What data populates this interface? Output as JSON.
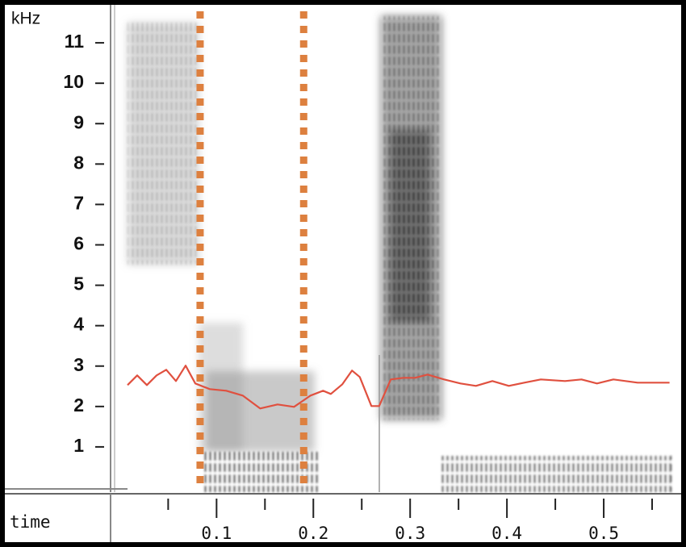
{
  "chart_data": {
    "type": "spectrogram",
    "y_label": "kHz",
    "x_label": "time",
    "xlim": [
      0.008,
      0.57
    ],
    "ylim": [
      0,
      11.9
    ],
    "xticks": [
      0.1,
      0.2,
      0.3,
      0.4,
      0.5
    ],
    "xminor_ticks": [
      0.05,
      0.15,
      0.25,
      0.35,
      0.45,
      0.55
    ],
    "yticks": [
      1,
      2,
      3,
      4,
      5,
      6,
      7,
      8,
      9,
      10,
      11
    ],
    "series": [
      {
        "color": "#e0503f",
        "x": [
          0.008,
          0.018,
          0.028,
          0.038,
          0.048,
          0.058,
          0.068,
          0.078,
          0.093,
          0.11,
          0.127,
          0.145,
          0.163,
          0.18,
          0.197,
          0.21,
          0.218,
          0.23,
          0.24,
          0.248,
          0.26,
          0.268,
          0.28,
          0.293,
          0.305,
          0.318,
          0.335,
          0.352,
          0.368,
          0.385,
          0.402,
          0.418,
          0.435,
          0.46,
          0.477,
          0.493,
          0.51,
          0.535,
          0.568
        ],
        "values": [
          2.53,
          2.77,
          2.53,
          2.77,
          2.91,
          2.63,
          3.01,
          2.57,
          2.43,
          2.39,
          2.27,
          1.95,
          2.05,
          1.99,
          2.27,
          2.39,
          2.31,
          2.55,
          2.89,
          2.73,
          2.01,
          2.01,
          2.67,
          2.71,
          2.71,
          2.79,
          2.67,
          2.57,
          2.51,
          2.63,
          2.51,
          2.59,
          2.67,
          2.63,
          2.67,
          2.57,
          2.67,
          2.59,
          2.59
        ]
      }
    ],
    "vlines": {
      "color": "#dd803f",
      "x": [
        0.083,
        0.19
      ]
    }
  }
}
